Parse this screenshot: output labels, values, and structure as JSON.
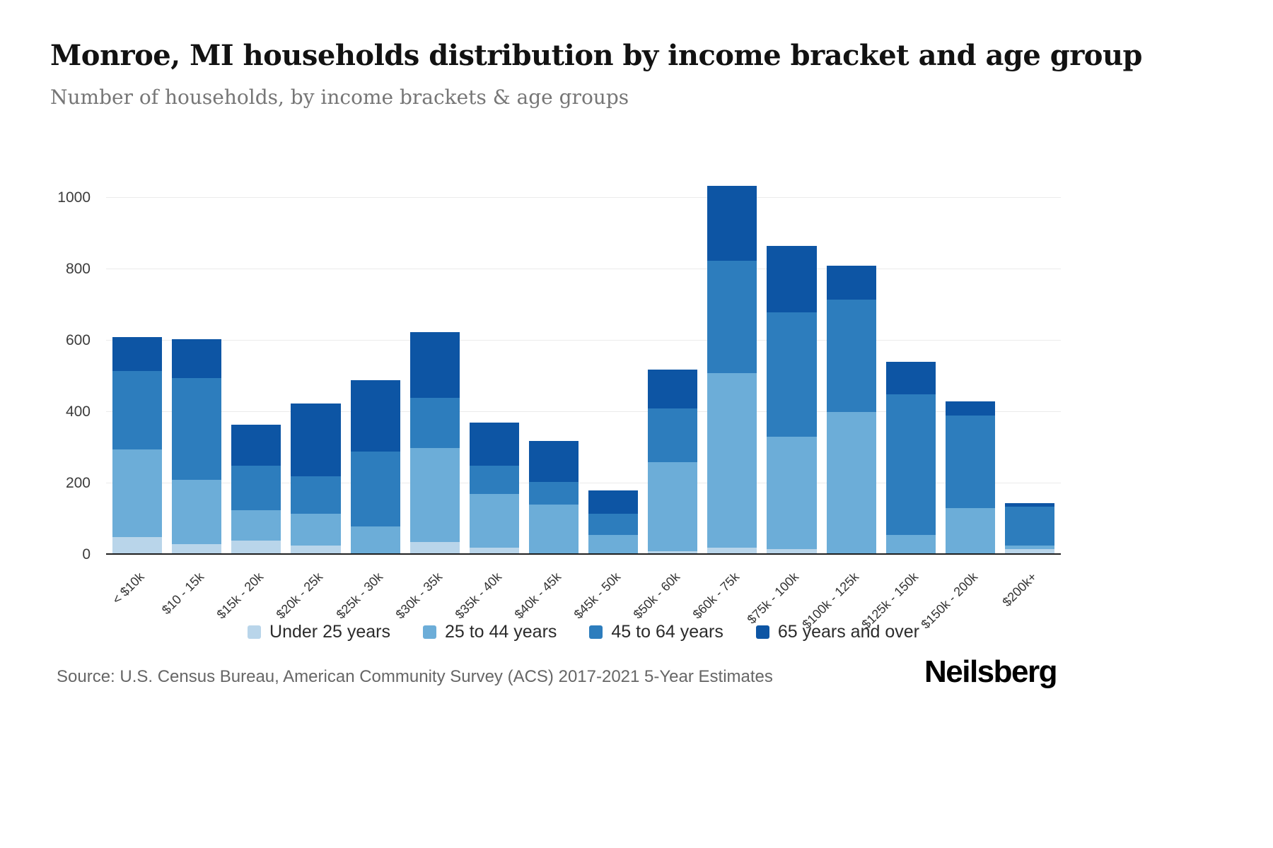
{
  "header": {
    "title": "Monroe, MI households distribution by income bracket and age group",
    "subtitle": "Number of households, by income brackets & age groups"
  },
  "footer": {
    "source": "Source: U.S. Census Bureau, American Community Survey (ACS) 2017-2021 5-Year Estimates",
    "logo": "Neilsberg"
  },
  "chart_data": {
    "type": "bar",
    "stacked": true,
    "title": "Monroe, MI households distribution by income bracket and age group",
    "subtitle": "Number of households, by income brackets & age groups",
    "xlabel": "",
    "ylabel": "",
    "grid": true,
    "legend_position": "bottom",
    "ylim": [
      0,
      1060
    ],
    "yticks": [
      0,
      200,
      400,
      600,
      800,
      1000
    ],
    "categories": [
      "< $10k",
      "$10 - 15k",
      "$15k - 20k",
      "$20k - 25k",
      "$25k - 30k",
      "$30k - 35k",
      "$35k - 40k",
      "$40k - 45k",
      "$45k - 50k",
      "$50k - 60k",
      "$60k - 75k",
      "$75k - 100k",
      "$100k - 125k",
      "$125k - 150k",
      "$150k - 200k",
      "$200k+"
    ],
    "series": [
      {
        "name": "Under 25 years",
        "color": "#b9d5ea",
        "values": [
          50,
          30,
          40,
          25,
          0,
          35,
          20,
          0,
          0,
          10,
          20,
          15,
          0,
          0,
          0,
          15
        ]
      },
      {
        "name": "25 to 44 years",
        "color": "#6cadd8",
        "values": [
          245,
          180,
          85,
          90,
          80,
          265,
          150,
          140,
          55,
          250,
          490,
          315,
          400,
          55,
          130,
          10
        ]
      },
      {
        "name": "45 to 64 years",
        "color": "#2d7dbd",
        "values": [
          220,
          285,
          125,
          105,
          210,
          140,
          80,
          65,
          60,
          150,
          315,
          350,
          315,
          395,
          260,
          110
        ]
      },
      {
        "name": "65 years and over",
        "color": "#0d55a4",
        "values": [
          95,
          110,
          115,
          205,
          200,
          185,
          120,
          115,
          65,
          110,
          210,
          185,
          95,
          90,
          40,
          10
        ]
      }
    ],
    "totals": [
      610,
      605,
      365,
      425,
      490,
      625,
      370,
      320,
      180,
      520,
      1035,
      865,
      810,
      540,
      430,
      145
    ]
  }
}
